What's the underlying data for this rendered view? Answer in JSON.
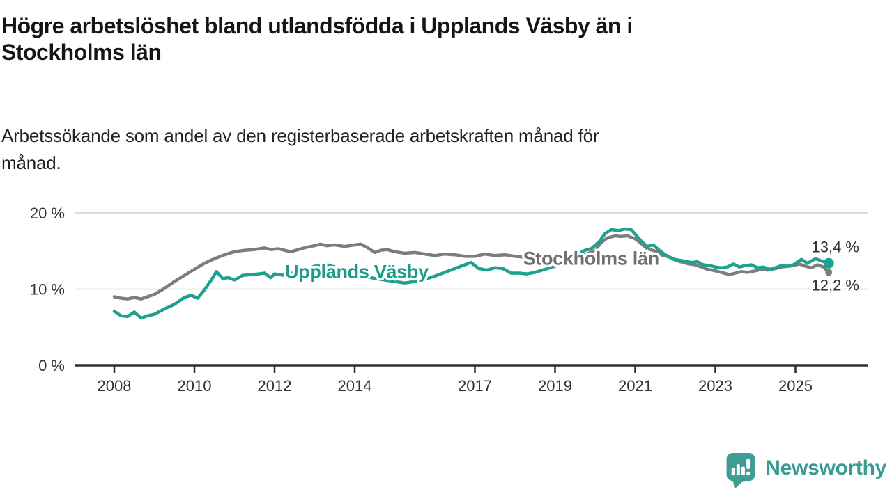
{
  "header": {
    "title_lines": [
      "Högre arbetslöshet bland utlandsfödda i Upplands Väsby än i",
      "Stockholms län"
    ],
    "subtitle_lines": [
      "Arbetssökande som andel av den registerbaserade arbetskraften månad för",
      "månad."
    ]
  },
  "footer": {
    "logo_text": "Newsworthy"
  },
  "colors": {
    "teal_line": "#1fa18f",
    "gray_line": "#7d7d7d",
    "teal_label": "#1b9c8b",
    "gray_label": "#717171",
    "axis_text": "#333333",
    "axis_line": "#2e2e2e",
    "gridline": "#d2d2d2",
    "logo_teal": "#3f9d95"
  },
  "chart_data": {
    "type": "line",
    "title": "Högre arbetslöshet bland utlandsfödda i Upplands Väsby än i Stockholms län",
    "subtitle": "Arbetssökande som andel av den registerbaserade arbetskraften månad för månad.",
    "unit": "%",
    "grid": true,
    "legend_position": "inline-labels",
    "xlim": [
      2007.0,
      2026.8
    ],
    "ylim": [
      0,
      21.5
    ],
    "x_ticks": [
      {
        "year": 2008,
        "label": "2008"
      },
      {
        "year": 2010,
        "label": "2010"
      },
      {
        "year": 2012,
        "label": "2012"
      },
      {
        "year": 2014,
        "label": "2014"
      },
      {
        "year": 2017,
        "label": "2017"
      },
      {
        "year": 2019,
        "label": "2019"
      },
      {
        "year": 2021,
        "label": "2021"
      },
      {
        "year": 2023,
        "label": "2023"
      },
      {
        "year": 2025,
        "label": "2025"
      }
    ],
    "y_ticks": [
      {
        "value": 0,
        "label": "0 %",
        "grid": false
      },
      {
        "value": 10,
        "label": "10 %",
        "grid": true
      },
      {
        "value": 20,
        "label": "20 %",
        "grid": true
      }
    ],
    "series": [
      {
        "name": "Stockholms län",
        "color": "#7d7d7d",
        "label_color": "#717171",
        "label_pos": {
          "x": 2019.9,
          "y": 14.0
        },
        "end_value": 12.2,
        "end_label": "12,2 %",
        "end_label_side": "below",
        "end_dot_radius": 5,
        "points": [
          [
            2008.0,
            9.0
          ],
          [
            2008.17,
            8.8
          ],
          [
            2008.33,
            8.7
          ],
          [
            2008.5,
            8.9
          ],
          [
            2008.67,
            8.7
          ],
          [
            2008.83,
            9.0
          ],
          [
            2009.0,
            9.3
          ],
          [
            2009.25,
            10.1
          ],
          [
            2009.5,
            11.0
          ],
          [
            2009.75,
            11.8
          ],
          [
            2010.0,
            12.6
          ],
          [
            2010.25,
            13.4
          ],
          [
            2010.5,
            14.0
          ],
          [
            2010.75,
            14.5
          ],
          [
            2011.0,
            14.9
          ],
          [
            2011.25,
            15.1
          ],
          [
            2011.5,
            15.2
          ],
          [
            2011.75,
            15.4
          ],
          [
            2011.9,
            15.2
          ],
          [
            2012.1,
            15.3
          ],
          [
            2012.25,
            15.1
          ],
          [
            2012.4,
            14.9
          ],
          [
            2012.6,
            15.2
          ],
          [
            2012.8,
            15.5
          ],
          [
            2013.0,
            15.7
          ],
          [
            2013.15,
            15.9
          ],
          [
            2013.3,
            15.7
          ],
          [
            2013.5,
            15.8
          ],
          [
            2013.75,
            15.6
          ],
          [
            2014.0,
            15.8
          ],
          [
            2014.15,
            15.9
          ],
          [
            2014.3,
            15.5
          ],
          [
            2014.5,
            14.8
          ],
          [
            2014.65,
            15.1
          ],
          [
            2014.8,
            15.2
          ],
          [
            2015.0,
            14.9
          ],
          [
            2015.25,
            14.7
          ],
          [
            2015.5,
            14.8
          ],
          [
            2015.75,
            14.6
          ],
          [
            2016.0,
            14.4
          ],
          [
            2016.25,
            14.6
          ],
          [
            2016.5,
            14.5
          ],
          [
            2016.75,
            14.3
          ],
          [
            2017.0,
            14.3
          ],
          [
            2017.25,
            14.6
          ],
          [
            2017.5,
            14.4
          ],
          [
            2017.75,
            14.5
          ],
          [
            2018.0,
            14.3
          ],
          [
            2018.25,
            14.2
          ],
          [
            2018.5,
            14.1
          ],
          [
            2018.75,
            14.0
          ],
          [
            2019.0,
            13.9
          ],
          [
            2019.25,
            14.0
          ],
          [
            2019.5,
            14.2
          ],
          [
            2019.75,
            14.5
          ],
          [
            2020.0,
            15.1
          ],
          [
            2020.15,
            16.1
          ],
          [
            2020.3,
            16.7
          ],
          [
            2020.5,
            17.0
          ],
          [
            2020.65,
            16.9
          ],
          [
            2020.8,
            17.0
          ],
          [
            2021.0,
            16.6
          ],
          [
            2021.15,
            16.0
          ],
          [
            2021.3,
            15.3
          ],
          [
            2021.5,
            15.0
          ],
          [
            2021.65,
            14.5
          ],
          [
            2021.85,
            14.2
          ],
          [
            2022.0,
            13.8
          ],
          [
            2022.2,
            13.5
          ],
          [
            2022.35,
            13.3
          ],
          [
            2022.5,
            13.2
          ],
          [
            2022.65,
            12.9
          ],
          [
            2022.8,
            12.6
          ],
          [
            2023.0,
            12.4
          ],
          [
            2023.15,
            12.2
          ],
          [
            2023.35,
            11.9
          ],
          [
            2023.5,
            12.1
          ],
          [
            2023.65,
            12.3
          ],
          [
            2023.8,
            12.2
          ],
          [
            2024.0,
            12.4
          ],
          [
            2024.15,
            12.6
          ],
          [
            2024.3,
            12.5
          ],
          [
            2024.5,
            12.7
          ],
          [
            2024.65,
            12.9
          ],
          [
            2024.8,
            13.0
          ],
          [
            2024.95,
            13.1
          ],
          [
            2025.1,
            13.3
          ],
          [
            2025.25,
            13.0
          ],
          [
            2025.4,
            12.8
          ],
          [
            2025.55,
            13.2
          ],
          [
            2025.7,
            12.9
          ],
          [
            2025.83,
            12.2
          ]
        ]
      },
      {
        "name": "Upplands Väsby",
        "color": "#1fa18f",
        "label_color": "#1b9c8b",
        "label_pos": {
          "x": 2014.05,
          "y": 12.3
        },
        "end_value": 13.4,
        "end_label": "13,4 %",
        "end_label_side": "above",
        "end_dot_radius": 7.5,
        "points": [
          [
            2008.0,
            7.1
          ],
          [
            2008.17,
            6.5
          ],
          [
            2008.33,
            6.4
          ],
          [
            2008.5,
            7.0
          ],
          [
            2008.67,
            6.2
          ],
          [
            2008.83,
            6.5
          ],
          [
            2009.0,
            6.7
          ],
          [
            2009.25,
            7.4
          ],
          [
            2009.5,
            8.0
          ],
          [
            2009.75,
            8.9
          ],
          [
            2009.92,
            9.2
          ],
          [
            2010.08,
            8.8
          ],
          [
            2010.25,
            9.9
          ],
          [
            2010.42,
            11.2
          ],
          [
            2010.55,
            12.3
          ],
          [
            2010.7,
            11.4
          ],
          [
            2010.85,
            11.5
          ],
          [
            2011.0,
            11.2
          ],
          [
            2011.2,
            11.8
          ],
          [
            2011.4,
            11.9
          ],
          [
            2011.6,
            12.0
          ],
          [
            2011.75,
            12.1
          ],
          [
            2011.9,
            11.5
          ],
          [
            2012.0,
            12.0
          ],
          [
            2012.25,
            11.8
          ],
          [
            2012.5,
            12.2
          ],
          [
            2012.75,
            12.6
          ],
          [
            2013.0,
            13.0
          ],
          [
            2013.25,
            13.3
          ],
          [
            2013.5,
            12.9
          ],
          [
            2013.75,
            12.4
          ],
          [
            2014.0,
            12.0
          ],
          [
            2014.25,
            11.7
          ],
          [
            2014.5,
            11.4
          ],
          [
            2014.75,
            11.2
          ],
          [
            2015.0,
            11.0
          ],
          [
            2015.25,
            10.8
          ],
          [
            2015.5,
            11.0
          ],
          [
            2015.75,
            11.3
          ],
          [
            2016.0,
            11.7
          ],
          [
            2016.25,
            12.2
          ],
          [
            2016.5,
            12.7
          ],
          [
            2016.75,
            13.2
          ],
          [
            2016.9,
            13.5
          ],
          [
            2017.1,
            12.7
          ],
          [
            2017.3,
            12.5
          ],
          [
            2017.5,
            12.8
          ],
          [
            2017.7,
            12.7
          ],
          [
            2017.9,
            12.1
          ],
          [
            2018.1,
            12.1
          ],
          [
            2018.3,
            12.0
          ],
          [
            2018.5,
            12.2
          ],
          [
            2018.75,
            12.6
          ],
          [
            2019.0,
            13.0
          ],
          [
            2019.25,
            13.6
          ],
          [
            2019.5,
            14.4
          ],
          [
            2019.75,
            15.1
          ],
          [
            2019.9,
            15.3
          ],
          [
            2020.1,
            16.2
          ],
          [
            2020.25,
            17.3
          ],
          [
            2020.4,
            17.8
          ],
          [
            2020.6,
            17.7
          ],
          [
            2020.75,
            17.9
          ],
          [
            2020.9,
            17.8
          ],
          [
            2021.05,
            16.9
          ],
          [
            2021.15,
            16.3
          ],
          [
            2021.3,
            15.6
          ],
          [
            2021.45,
            15.8
          ],
          [
            2021.6,
            15.1
          ],
          [
            2021.75,
            14.5
          ],
          [
            2021.9,
            14.1
          ],
          [
            2022.0,
            13.9
          ],
          [
            2022.2,
            13.7
          ],
          [
            2022.4,
            13.5
          ],
          [
            2022.55,
            13.6
          ],
          [
            2022.7,
            13.2
          ],
          [
            2022.85,
            13.1
          ],
          [
            2023.0,
            12.9
          ],
          [
            2023.15,
            12.8
          ],
          [
            2023.3,
            12.9
          ],
          [
            2023.45,
            13.3
          ],
          [
            2023.6,
            12.9
          ],
          [
            2023.75,
            13.1
          ],
          [
            2023.9,
            13.2
          ],
          [
            2024.05,
            12.8
          ],
          [
            2024.2,
            12.9
          ],
          [
            2024.35,
            12.6
          ],
          [
            2024.5,
            12.8
          ],
          [
            2024.65,
            13.1
          ],
          [
            2024.8,
            13.0
          ],
          [
            2024.95,
            13.2
          ],
          [
            2025.15,
            13.9
          ],
          [
            2025.3,
            13.4
          ],
          [
            2025.5,
            14.0
          ],
          [
            2025.65,
            13.7
          ],
          [
            2025.83,
            13.4
          ]
        ]
      }
    ]
  }
}
